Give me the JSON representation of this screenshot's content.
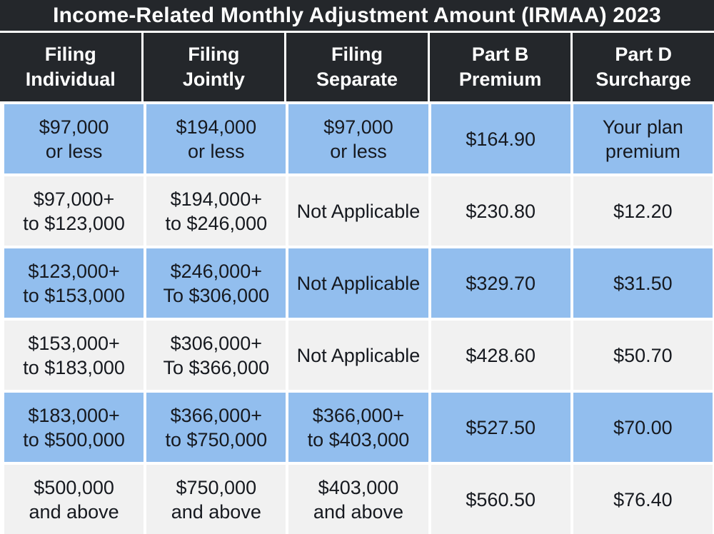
{
  "title": "Income-Related Monthly Adjustment Amount (IRMAA) 2023",
  "chart_data": {
    "type": "table",
    "title": "Income-Related Monthly Adjustment Amount (IRMAA) 2023",
    "columns": [
      "Filing\nIndividual",
      "Filing\nJointly",
      "Filing\nSeparate",
      "Part B\nPremium",
      "Part D\nSurcharge"
    ],
    "rows": [
      [
        "$97,000\nor less",
        "$194,000\nor less",
        "$97,000\nor less",
        "$164.90",
        "Your plan\npremium"
      ],
      [
        "$97,000+\nto $123,000",
        "$194,000+\nto $246,000",
        "Not Applicable",
        "$230.80",
        "$12.20"
      ],
      [
        "$123,000+\nto $153,000",
        "$246,000+\nTo $306,000",
        "Not Applicable",
        "$329.70",
        "$31.50"
      ],
      [
        "$153,000+\nto $183,000",
        "$306,000+\nTo $366,000",
        "Not Applicable",
        "$428.60",
        "$50.70"
      ],
      [
        "$183,000+\nto $500,000",
        "$366,000+\nto $750,000",
        "$366,000+\nto $403,000",
        "$527.50",
        "$70.00"
      ],
      [
        "$500,000\nand above",
        "$750,000\nand above",
        "$403,000\nand above",
        "$560.50",
        "$76.40"
      ]
    ],
    "layout": {
      "header_rows": 1,
      "striped": "blue-gray-alternating",
      "highlight_row_indexes": [
        0,
        2,
        4
      ]
    }
  },
  "colors": {
    "header_bg": "#24272B",
    "header_text": "#FFFFFF",
    "row_highlight": "#92BEEE",
    "row_alt": "#F1F1F1",
    "body_text": "#16191F",
    "gap": "#FFFFFF"
  }
}
